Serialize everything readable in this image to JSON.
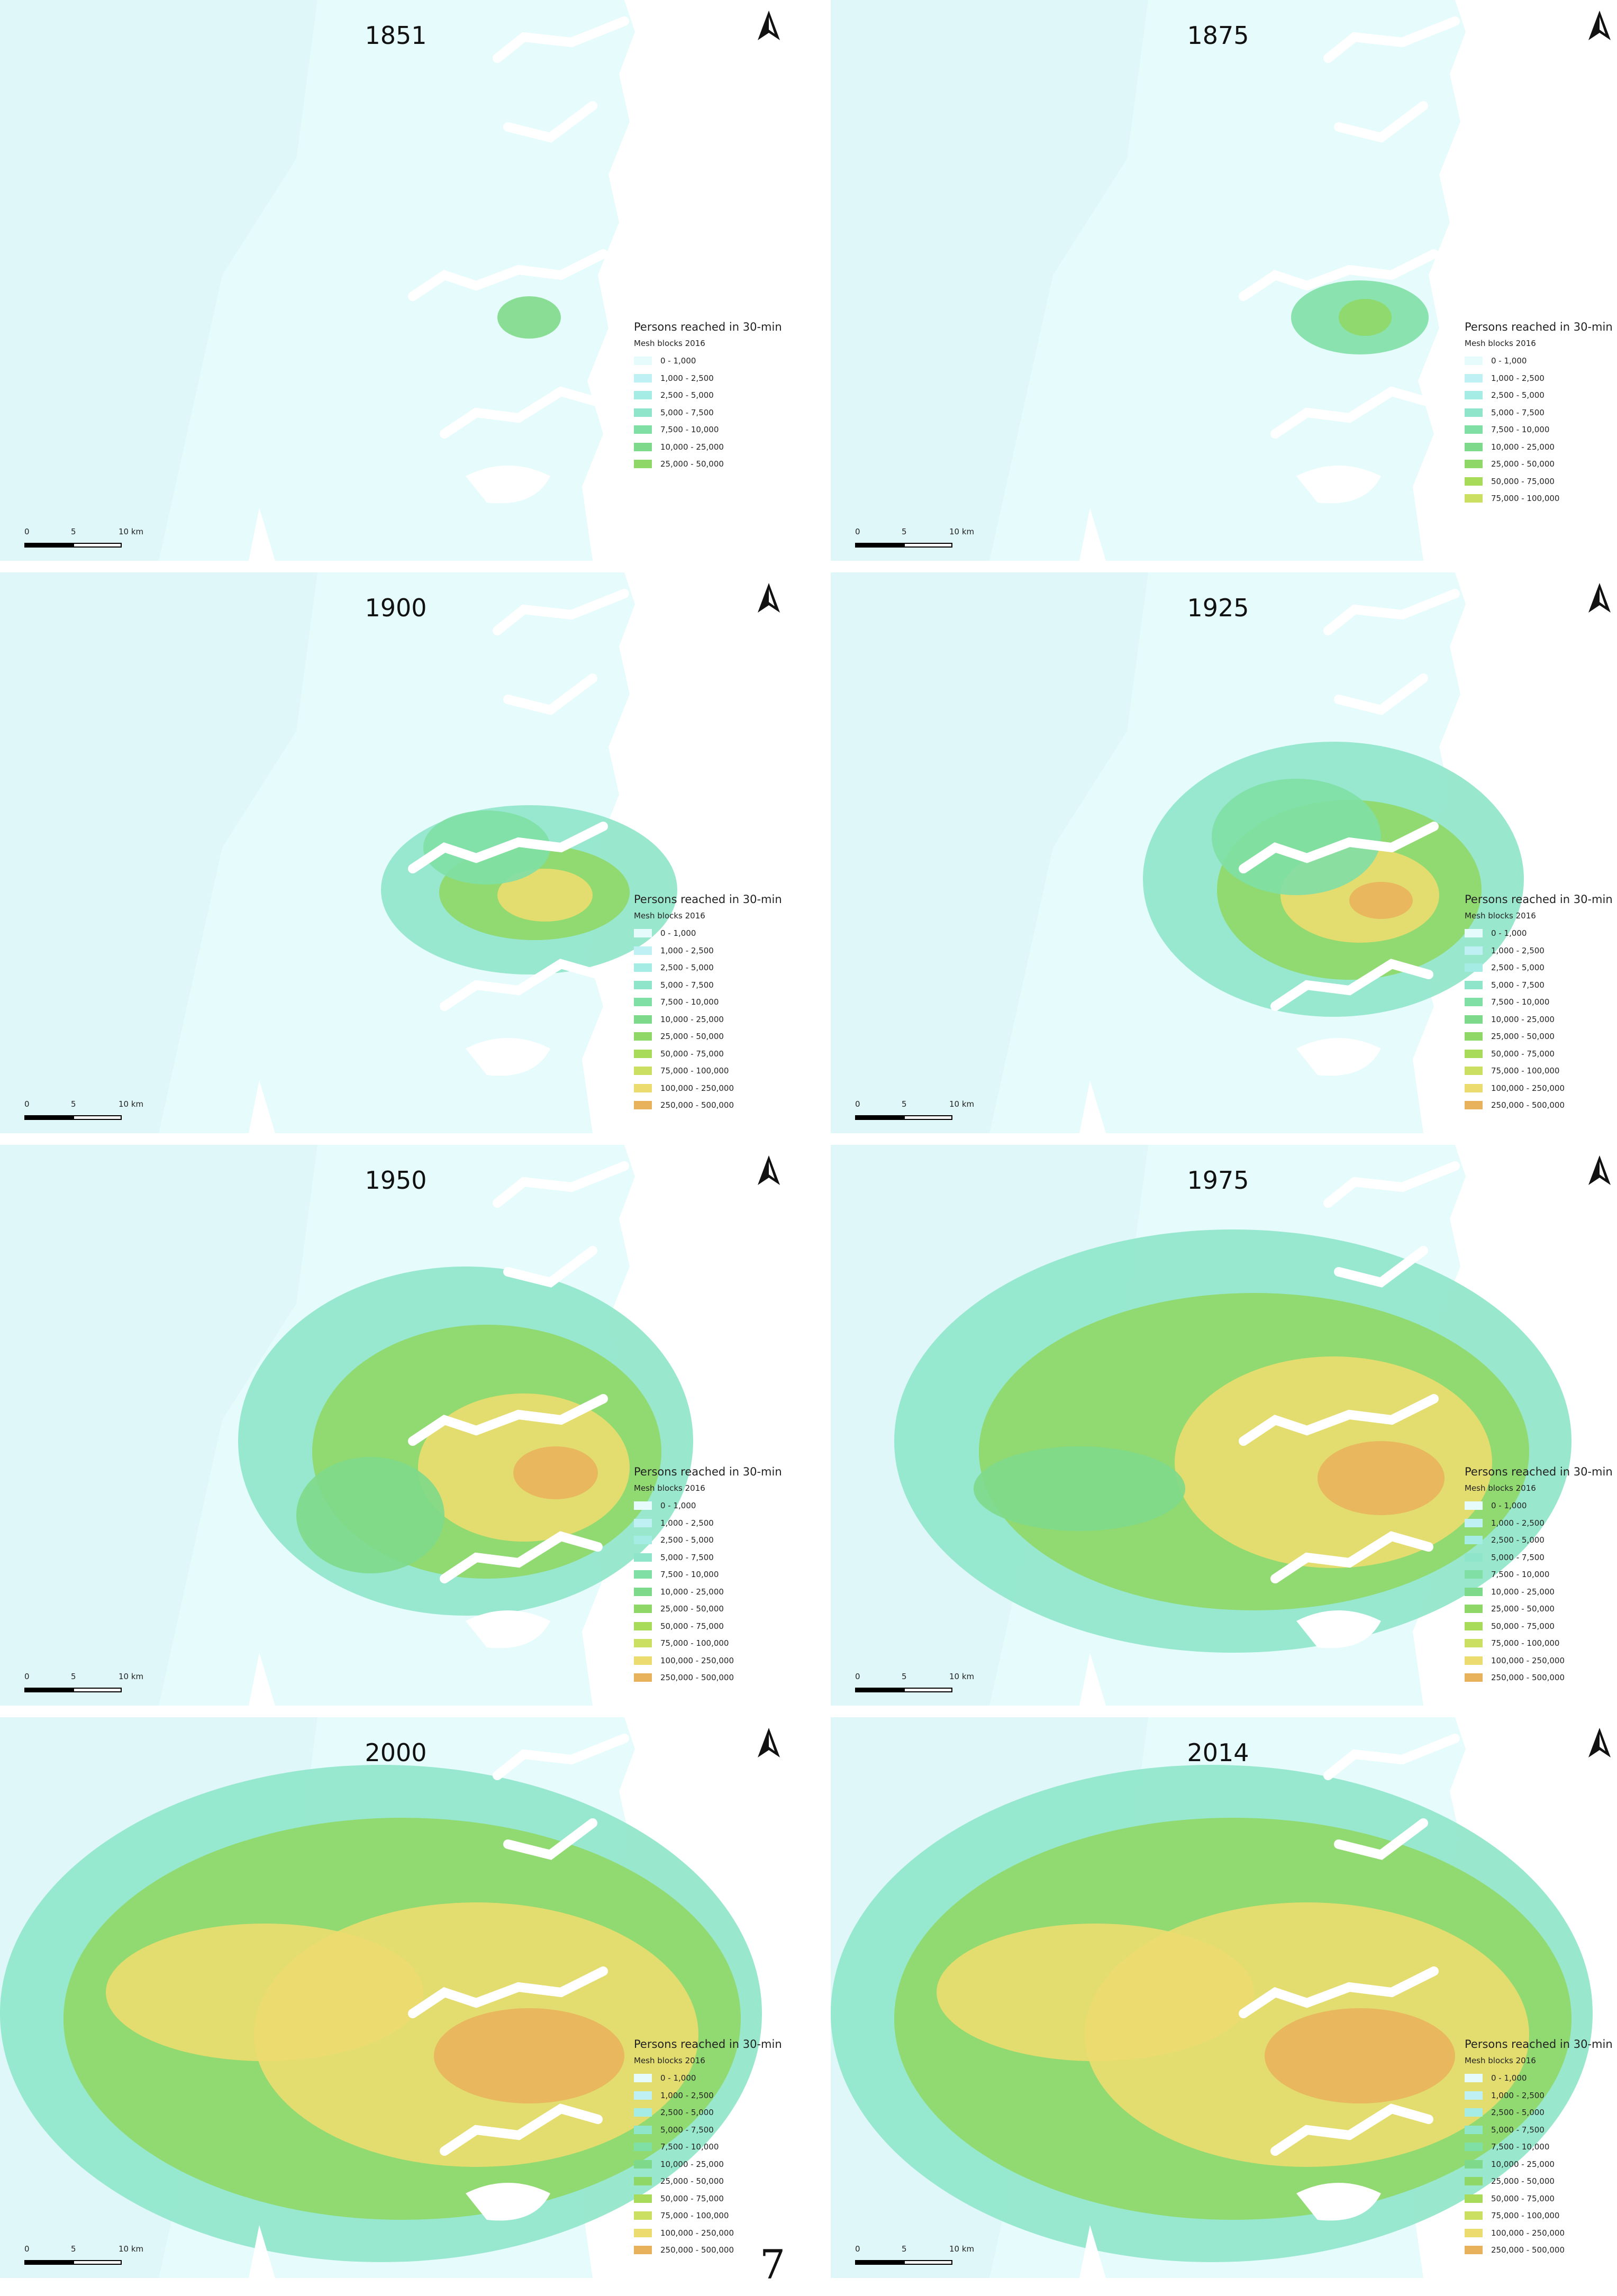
{
  "page_number": "7",
  "legend_title": "Persons reached in 30-min",
  "legend_subtitle": "Mesh blocks 2016",
  "scale_labels": [
    "0",
    "5",
    "10 km"
  ],
  "icons": {
    "north_arrow": "north-arrow-icon"
  },
  "classes": [
    {
      "label": "0 - 1,000",
      "color": "#e6fbfb"
    },
    {
      "label": "1,000 - 2,500",
      "color": "#bff0f3"
    },
    {
      "label": "2,500 - 5,000",
      "color": "#a4ece4"
    },
    {
      "label": "5,000 - 7,500",
      "color": "#8ee5c9"
    },
    {
      "label": "7,500 - 10,000",
      "color": "#7fdfa5"
    },
    {
      "label": "10,000 - 25,000",
      "color": "#7ed98a"
    },
    {
      "label": "25,000 - 50,000",
      "color": "#8fd867"
    },
    {
      "label": "50,000 - 75,000",
      "color": "#a9db5a"
    },
    {
      "label": "75,000 - 100,000",
      "color": "#cbe062"
    },
    {
      "label": "100,000 - 250,000",
      "color": "#ecdb6f"
    },
    {
      "label": "250,000 - 500,000",
      "color": "#e8b25c"
    }
  ],
  "maps": [
    {
      "year": "1851",
      "legend_classes": 7
    },
    {
      "year": "1875",
      "legend_classes": 9
    },
    {
      "year": "1900",
      "legend_classes": 11
    },
    {
      "year": "1925",
      "legend_classes": 11
    },
    {
      "year": "1950",
      "legend_classes": 11
    },
    {
      "year": "1975",
      "legend_classes": 11
    },
    {
      "year": "2000",
      "legend_classes": 11
    },
    {
      "year": "2014",
      "legend_classes": 11
    }
  ]
}
